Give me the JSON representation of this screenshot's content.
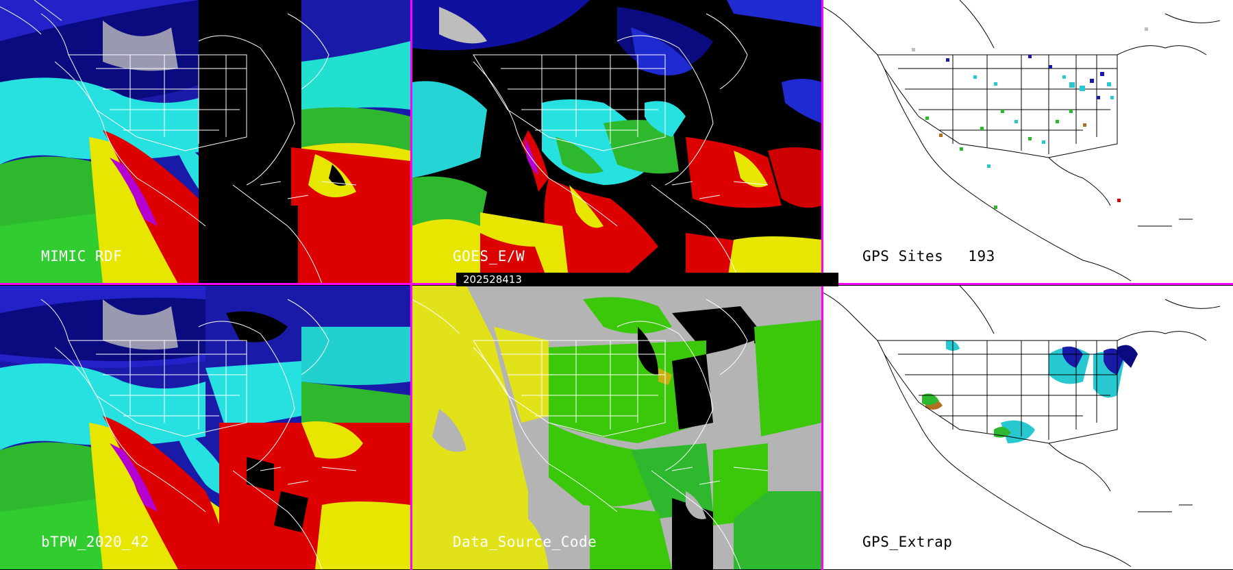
{
  "panels": {
    "top_left": {
      "label": "MIMIC RDF"
    },
    "top_middle": {
      "label": "GOES_E/W"
    },
    "top_right": {
      "label": "GPS Sites",
      "count": "193"
    },
    "bottom_left": {
      "label": "bTPW_2020_42"
    },
    "bottom_middle": {
      "label": "Data_Source_Code"
    },
    "bottom_right": {
      "label": "GPS_Extrap"
    }
  },
  "timestamp": "202528413",
  "colors": {
    "divider": "#ff00ff",
    "water_vapor_dry": "#1a1aa8",
    "water_vapor_mid": "#27e0e0",
    "water_vapor_green": "#2eb82e",
    "water_vapor_yellow": "#e6e600",
    "water_vapor_red": "#dd0000",
    "water_vapor_max": "#b400d0",
    "source_gray": "#b4b4b4",
    "source_yellow": "#e2e21a",
    "source_green": "#3cc80a"
  }
}
